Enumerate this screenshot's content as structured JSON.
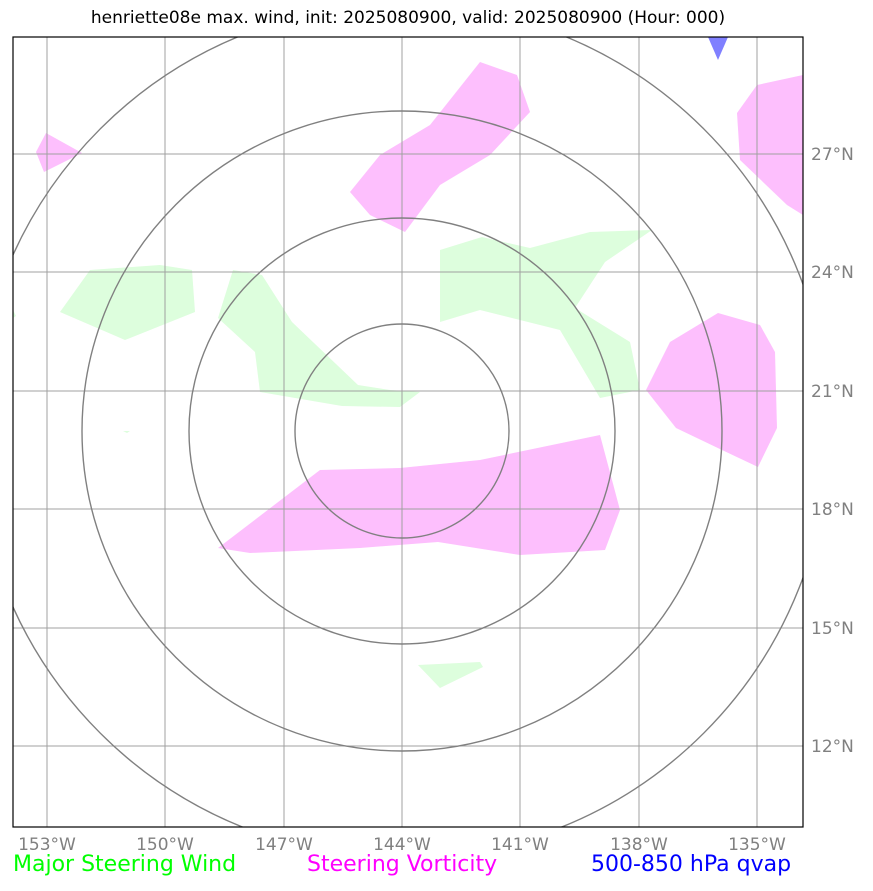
{
  "title": "henriette08e max. wind, init: 2025080900, valid: 2025080900 (Hour: 000)",
  "map": {
    "lon_labels": [
      "153°W",
      "150°W",
      "147°W",
      "144°W",
      "141°W",
      "138°W",
      "135°W"
    ],
    "lat_labels": [
      "27°N",
      "24°N",
      "21°N",
      "18°N",
      "15°N",
      "12°N"
    ],
    "range_ring_count": 4,
    "colors": {
      "steering_wind": "#ddfedd",
      "steering_vorticity": "#fdbffd",
      "qvap": "#8080ff",
      "grid": "#a0a0a0",
      "rings": "#808080"
    }
  },
  "legend": {
    "wind": "Major Steering Wind",
    "vorticity": "Steering Vorticity",
    "qvap": "500-850 hPa qvap"
  }
}
